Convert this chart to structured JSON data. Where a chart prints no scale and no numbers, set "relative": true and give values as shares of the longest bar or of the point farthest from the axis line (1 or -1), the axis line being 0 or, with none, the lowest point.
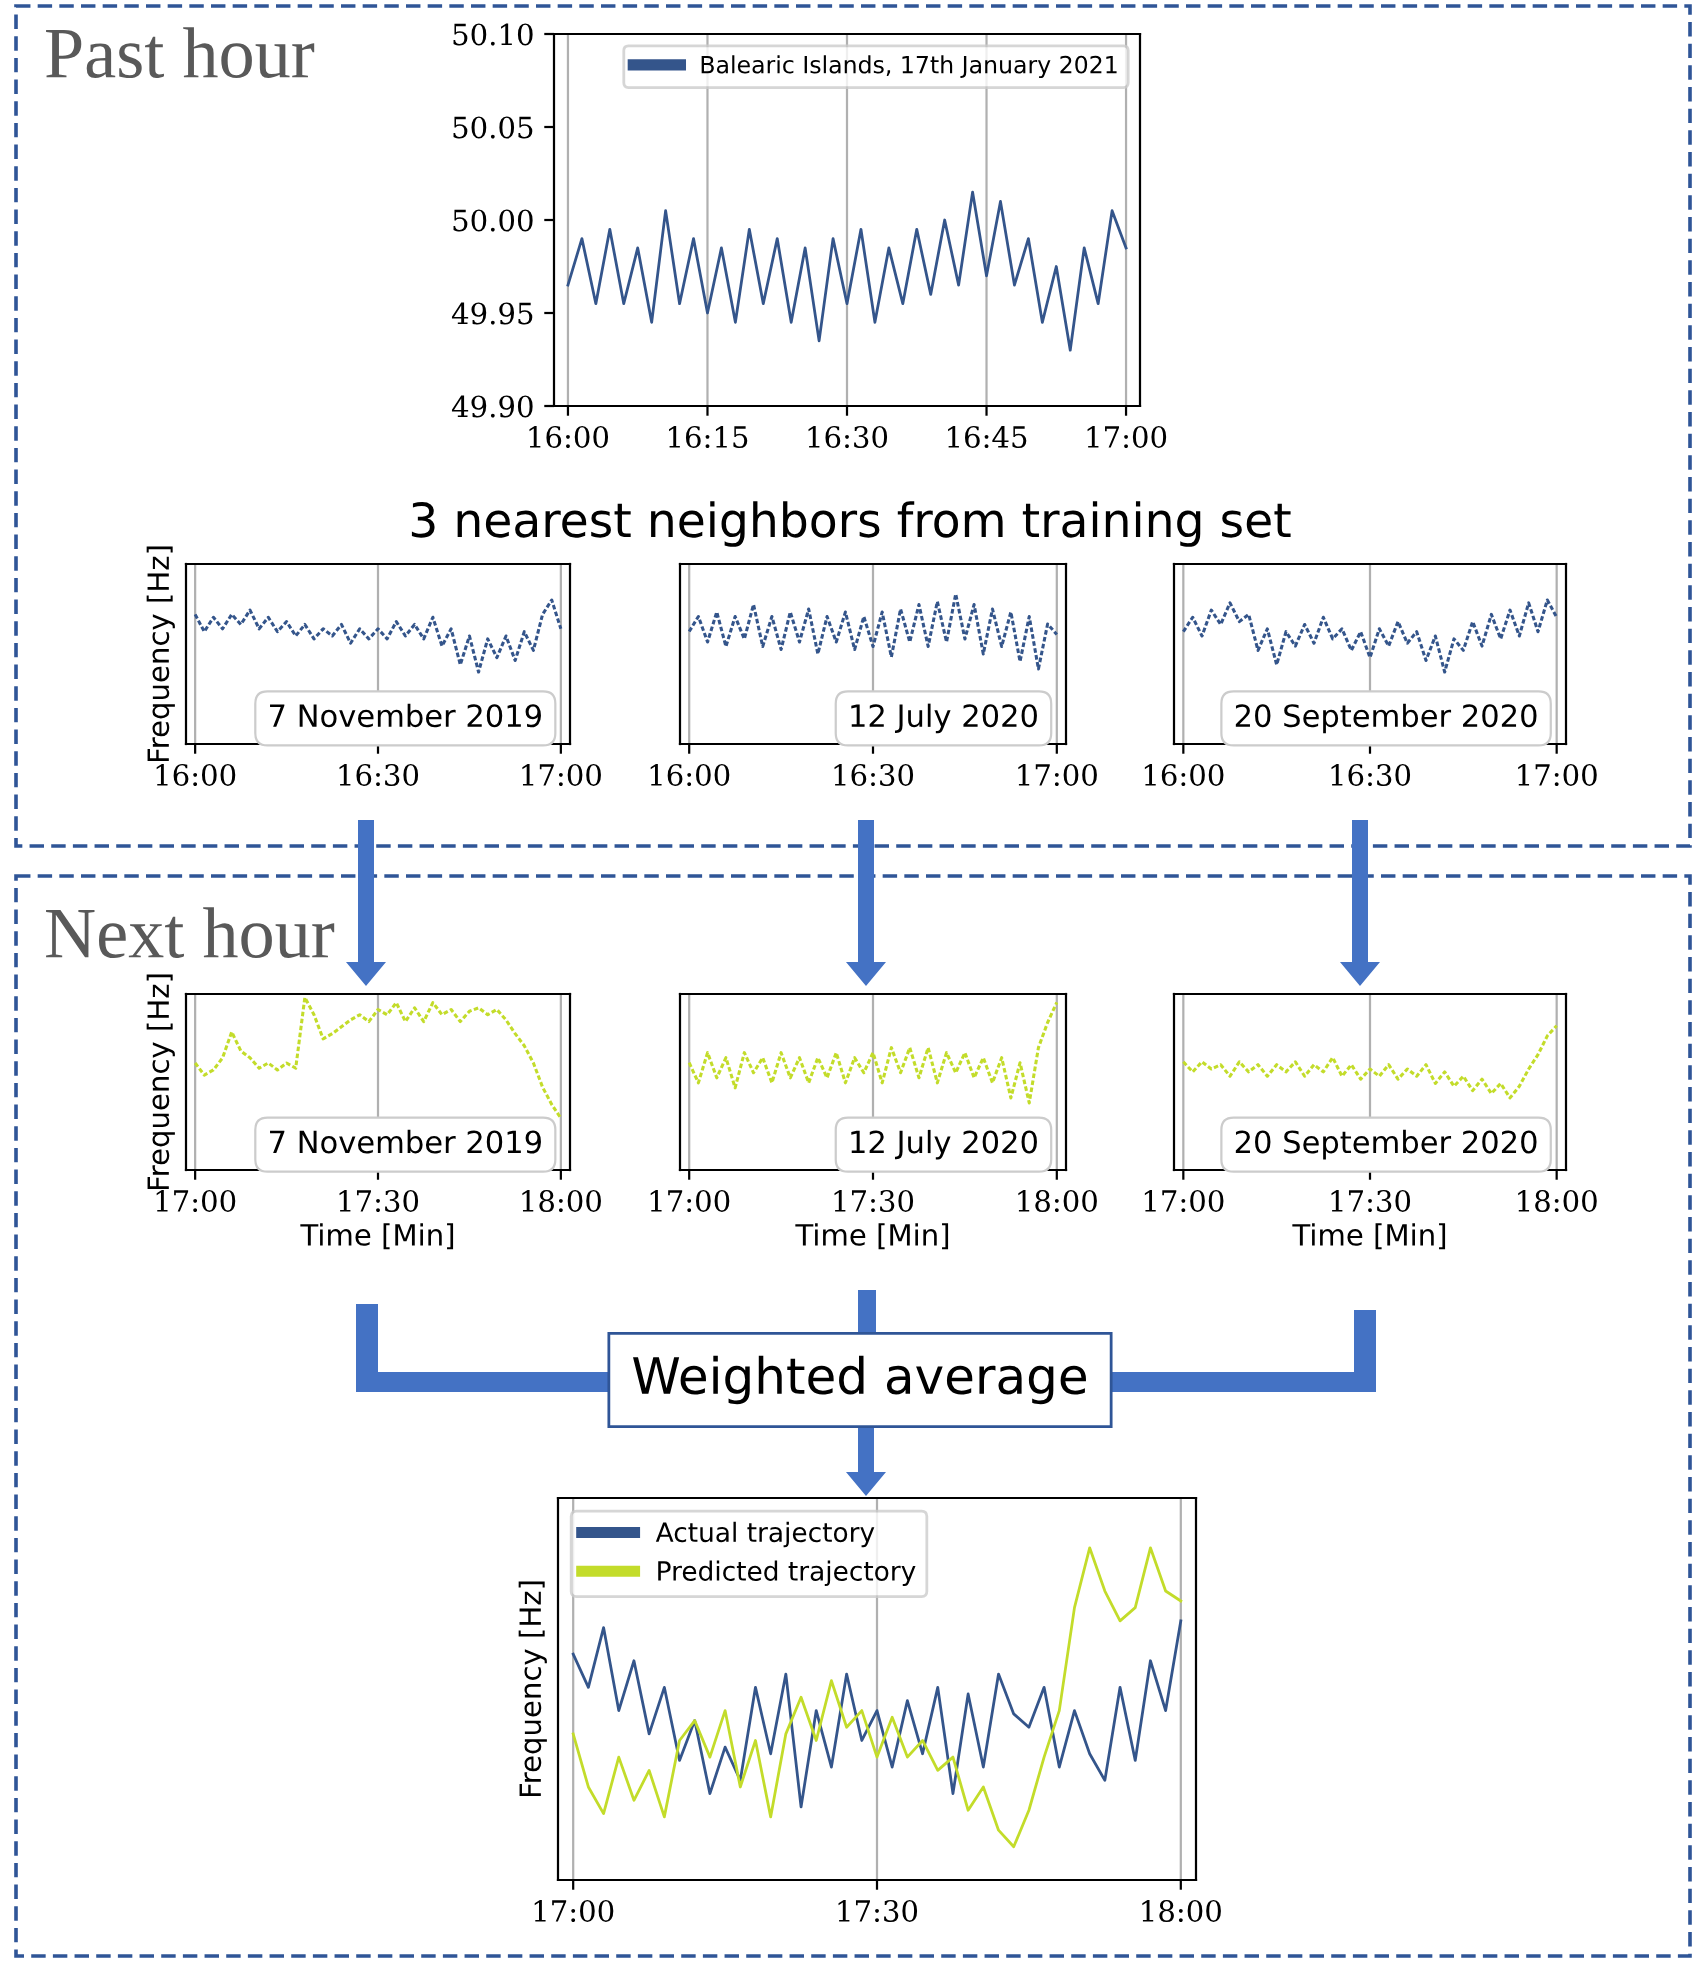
{
  "chart_data": [
    {
      "type": "line",
      "title": "Past hour",
      "x": [
        16.0,
        16.025,
        16.05,
        16.075,
        16.1,
        16.125,
        16.15,
        16.175,
        16.2,
        16.225,
        16.25,
        16.275,
        16.3,
        16.325,
        16.35,
        16.375,
        16.4,
        16.425,
        16.45,
        16.475,
        16.5,
        16.525,
        16.55,
        16.575,
        16.6,
        16.625,
        16.65,
        16.675,
        16.7,
        16.725,
        16.75,
        16.775,
        16.8,
        16.825,
        16.85,
        16.875,
        16.9,
        16.925,
        16.95,
        16.975,
        17.0
      ],
      "series": [
        {
          "name": "Balearic Islands, 17th January 2021",
          "color": "#34558b",
          "values": [
            49.965,
            49.99,
            49.955,
            49.995,
            49.955,
            49.985,
            49.945,
            50.005,
            49.955,
            49.99,
            49.95,
            49.985,
            49.945,
            49.995,
            49.955,
            49.99,
            49.945,
            49.985,
            49.935,
            49.99,
            49.955,
            49.995,
            49.945,
            49.985,
            49.955,
            49.995,
            49.96,
            50.0,
            49.965,
            50.015,
            49.97,
            50.01,
            49.965,
            49.99,
            49.945,
            49.975,
            49.93,
            49.985,
            49.955,
            50.005,
            49.985
          ]
        }
      ],
      "xlim": [
        15.975,
        17.025
      ],
      "xticks": [
        {
          "value": 16.0,
          "label": "16:00"
        },
        {
          "value": 16.25,
          "label": "16:15"
        },
        {
          "value": 16.5,
          "label": "16:30"
        },
        {
          "value": 16.75,
          "label": "16:45"
        },
        {
          "value": 17.0,
          "label": "17:00"
        }
      ],
      "ylim": [
        49.9,
        50.1
      ],
      "yticks": [
        {
          "value": 49.9,
          "label": "49.90"
        },
        {
          "value": 49.95,
          "label": "49.95"
        },
        {
          "value": 50.0,
          "label": "50.00"
        },
        {
          "value": 50.05,
          "label": "50.05"
        },
        {
          "value": 50.1,
          "label": "50.10"
        }
      ],
      "grid": "x",
      "legend": "top right",
      "line_style": "solid"
    },
    {
      "type": "line",
      "title": "3 nearest neighbors from training set",
      "relative": true,
      "ylabel": "Frequency [Hz]",
      "annotations": [
        "7 November 2019"
      ],
      "x": [
        16.0,
        16.025,
        16.05,
        16.075,
        16.1,
        16.125,
        16.15,
        16.175,
        16.2,
        16.225,
        16.25,
        16.275,
        16.3,
        16.325,
        16.35,
        16.375,
        16.4,
        16.425,
        16.45,
        16.475,
        16.5,
        16.525,
        16.55,
        16.575,
        16.6,
        16.625,
        16.65,
        16.675,
        16.7,
        16.725,
        16.75,
        16.775,
        16.8,
        16.825,
        16.85,
        16.875,
        16.9,
        16.925,
        16.95,
        16.975,
        17.0
      ],
      "series": [
        {
          "color": "#34558b",
          "values": [
            0.9,
            0.78,
            0.88,
            0.8,
            0.9,
            0.83,
            0.93,
            0.8,
            0.88,
            0.78,
            0.85,
            0.75,
            0.83,
            0.73,
            0.8,
            0.75,
            0.83,
            0.7,
            0.8,
            0.73,
            0.8,
            0.73,
            0.85,
            0.75,
            0.83,
            0.73,
            0.88,
            0.68,
            0.8,
            0.55,
            0.75,
            0.5,
            0.73,
            0.6,
            0.75,
            0.58,
            0.78,
            0.65,
            0.9,
            1.0,
            0.8
          ]
        }
      ],
      "xlim": [
        15.975,
        17.025
      ],
      "xticks": [
        {
          "value": 16.0,
          "label": "16:00"
        },
        {
          "value": 16.5,
          "label": "16:30"
        },
        {
          "value": 17.0,
          "label": "17:00"
        }
      ],
      "grid": "x",
      "line_style": "dotted"
    },
    {
      "type": "line",
      "relative": true,
      "annotations": [
        "12 July 2020"
      ],
      "x": [
        16.0,
        16.025,
        16.05,
        16.075,
        16.1,
        16.125,
        16.15,
        16.175,
        16.2,
        16.225,
        16.25,
        16.275,
        16.3,
        16.325,
        16.35,
        16.375,
        16.4,
        16.425,
        16.45,
        16.475,
        16.5,
        16.525,
        16.55,
        16.575,
        16.6,
        16.625,
        16.65,
        16.675,
        16.7,
        16.725,
        16.75,
        16.775,
        16.8,
        16.825,
        16.85,
        16.875,
        16.9,
        16.925,
        16.95,
        16.975,
        17.0
      ],
      "series": [
        {
          "color": "#34558b",
          "values": [
            0.75,
            0.85,
            0.68,
            0.88,
            0.65,
            0.85,
            0.7,
            0.93,
            0.65,
            0.85,
            0.63,
            0.88,
            0.68,
            0.9,
            0.6,
            0.85,
            0.68,
            0.88,
            0.63,
            0.85,
            0.65,
            0.88,
            0.58,
            0.9,
            0.68,
            0.93,
            0.65,
            0.95,
            0.68,
            1.0,
            0.7,
            0.93,
            0.6,
            0.9,
            0.65,
            0.88,
            0.55,
            0.85,
            0.5,
            0.8,
            0.73
          ]
        }
      ],
      "xlim": [
        15.975,
        17.025
      ],
      "xticks": [
        {
          "value": 16.0,
          "label": "16:00"
        },
        {
          "value": 16.5,
          "label": "16:30"
        },
        {
          "value": 17.0,
          "label": "17:00"
        }
      ],
      "grid": "x",
      "line_style": "dotted"
    },
    {
      "type": "line",
      "relative": true,
      "annotations": [
        "20 September 2020"
      ],
      "x": [
        16.0,
        16.025,
        16.05,
        16.075,
        16.1,
        16.125,
        16.15,
        16.175,
        16.2,
        16.225,
        16.25,
        16.275,
        16.3,
        16.325,
        16.35,
        16.375,
        16.4,
        16.425,
        16.45,
        16.475,
        16.5,
        16.525,
        16.55,
        16.575,
        16.6,
        16.625,
        16.65,
        16.675,
        16.7,
        16.725,
        16.75,
        16.775,
        16.8,
        16.825,
        16.85,
        16.875,
        16.9,
        16.925,
        16.95,
        16.975,
        17.0
      ],
      "series": [
        {
          "color": "#34558b",
          "values": [
            0.78,
            0.88,
            0.75,
            0.93,
            0.83,
            0.98,
            0.85,
            0.9,
            0.65,
            0.8,
            0.55,
            0.78,
            0.68,
            0.83,
            0.7,
            0.88,
            0.73,
            0.8,
            0.65,
            0.78,
            0.6,
            0.8,
            0.68,
            0.85,
            0.7,
            0.78,
            0.58,
            0.75,
            0.5,
            0.73,
            0.65,
            0.85,
            0.68,
            0.9,
            0.73,
            0.93,
            0.75,
            0.98,
            0.78,
            1.0,
            0.88
          ]
        }
      ],
      "xlim": [
        15.975,
        17.025
      ],
      "xticks": [
        {
          "value": 16.0,
          "label": "16:00"
        },
        {
          "value": 16.5,
          "label": "16:30"
        },
        {
          "value": 17.0,
          "label": "17:00"
        }
      ],
      "grid": "x",
      "line_style": "dotted"
    },
    {
      "type": "line",
      "title": "Next hour",
      "relative": true,
      "ylabel": "Frequency [Hz]",
      "xlabel": "Time [Min]",
      "annotations": [
        "7 November 2019"
      ],
      "x": [
        17.0,
        17.025,
        17.05,
        17.075,
        17.1,
        17.125,
        17.15,
        17.175,
        17.2,
        17.225,
        17.25,
        17.275,
        17.3,
        17.325,
        17.35,
        17.375,
        17.4,
        17.425,
        17.45,
        17.475,
        17.5,
        17.525,
        17.55,
        17.575,
        17.6,
        17.625,
        17.65,
        17.675,
        17.7,
        17.725,
        17.75,
        17.775,
        17.8,
        17.825,
        17.85,
        17.875,
        17.9,
        17.925,
        17.95,
        17.975,
        18.0
      ],
      "series": [
        {
          "color": "#c3dc2a",
          "values": [
            0.62,
            0.55,
            0.58,
            0.65,
            0.8,
            0.69,
            0.65,
            0.59,
            0.62,
            0.58,
            0.62,
            0.59,
            1.0,
            0.9,
            0.76,
            0.79,
            0.83,
            0.87,
            0.9,
            0.86,
            0.93,
            0.9,
            0.97,
            0.86,
            0.94,
            0.86,
            0.97,
            0.9,
            0.93,
            0.86,
            0.92,
            0.94,
            0.9,
            0.93,
            0.87,
            0.79,
            0.72,
            0.62,
            0.48,
            0.38,
            0.3
          ]
        }
      ],
      "xlim": [
        16.975,
        18.025
      ],
      "xticks": [
        {
          "value": 17.0,
          "label": "17:00"
        },
        {
          "value": 17.5,
          "label": "17:30"
        },
        {
          "value": 18.0,
          "label": "18:00"
        }
      ],
      "grid": "x",
      "line_style": "dotted"
    },
    {
      "type": "line",
      "relative": true,
      "xlabel": "Time [Min]",
      "annotations": [
        "12 July 2020"
      ],
      "x": [
        17.0,
        17.025,
        17.05,
        17.075,
        17.1,
        17.125,
        17.15,
        17.175,
        17.2,
        17.225,
        17.25,
        17.275,
        17.3,
        17.325,
        17.35,
        17.375,
        17.4,
        17.425,
        17.45,
        17.475,
        17.5,
        17.525,
        17.55,
        17.575,
        17.6,
        17.625,
        17.65,
        17.675,
        17.7,
        17.725,
        17.75,
        17.775,
        17.8,
        17.825,
        17.85,
        17.875,
        17.9,
        17.925,
        17.95,
        17.975,
        18.0
      ],
      "series": [
        {
          "color": "#c3dc2a",
          "values": [
            0.64,
            0.52,
            0.7,
            0.55,
            0.67,
            0.49,
            0.7,
            0.58,
            0.67,
            0.52,
            0.7,
            0.55,
            0.67,
            0.52,
            0.67,
            0.55,
            0.7,
            0.52,
            0.67,
            0.58,
            0.7,
            0.52,
            0.73,
            0.58,
            0.73,
            0.55,
            0.73,
            0.52,
            0.7,
            0.58,
            0.7,
            0.55,
            0.67,
            0.52,
            0.67,
            0.43,
            0.64,
            0.4,
            0.73,
            0.88,
            1.0
          ]
        }
      ],
      "xlim": [
        16.975,
        18.025
      ],
      "xticks": [
        {
          "value": 17.0,
          "label": "17:00"
        },
        {
          "value": 17.5,
          "label": "17:30"
        },
        {
          "value": 18.0,
          "label": "18:00"
        }
      ],
      "grid": "x",
      "line_style": "dotted"
    },
    {
      "type": "line",
      "relative": true,
      "xlabel": "Time [Min]",
      "annotations": [
        "20 September 2020"
      ],
      "x": [
        17.0,
        17.025,
        17.05,
        17.075,
        17.1,
        17.125,
        17.15,
        17.175,
        17.2,
        17.225,
        17.25,
        17.275,
        17.3,
        17.325,
        17.35,
        17.375,
        17.4,
        17.425,
        17.45,
        17.475,
        17.5,
        17.525,
        17.55,
        17.575,
        17.6,
        17.625,
        17.65,
        17.675,
        17.7,
        17.725,
        17.75,
        17.775,
        17.8,
        17.825,
        17.85,
        17.875,
        17.9,
        17.925,
        17.95,
        17.975,
        18.0
      ],
      "series": [
        {
          "color": "#c3dc2a",
          "values": [
            0.75,
            0.68,
            0.75,
            0.7,
            0.73,
            0.65,
            0.75,
            0.68,
            0.73,
            0.65,
            0.73,
            0.68,
            0.75,
            0.65,
            0.73,
            0.68,
            0.78,
            0.65,
            0.73,
            0.63,
            0.7,
            0.65,
            0.73,
            0.63,
            0.7,
            0.65,
            0.73,
            0.6,
            0.68,
            0.58,
            0.65,
            0.55,
            0.63,
            0.53,
            0.6,
            0.5,
            0.58,
            0.7,
            0.8,
            0.93,
            1.0
          ]
        }
      ],
      "xlim": [
        16.975,
        18.025
      ],
      "xticks": [
        {
          "value": 17.0,
          "label": "17:00"
        },
        {
          "value": 17.5,
          "label": "17:30"
        },
        {
          "value": 18.0,
          "label": "18:00"
        }
      ],
      "grid": "x",
      "line_style": "dotted"
    },
    {
      "type": "line",
      "title": "Weighted average",
      "relative": true,
      "ylabel": "Frequency [Hz]",
      "x": [
        17.0,
        17.025,
        17.05,
        17.075,
        17.1,
        17.125,
        17.15,
        17.175,
        17.2,
        17.225,
        17.25,
        17.275,
        17.3,
        17.325,
        17.35,
        17.375,
        17.4,
        17.425,
        17.45,
        17.475,
        17.5,
        17.525,
        17.55,
        17.575,
        17.6,
        17.625,
        17.65,
        17.675,
        17.7,
        17.725,
        17.75,
        17.775,
        17.8,
        17.825,
        17.85,
        17.875,
        17.9,
        17.925,
        17.95,
        17.975,
        18.0
      ],
      "series": [
        {
          "name": "Actual trajectory",
          "color": "#34558b",
          "values": [
            0.68,
            0.58,
            0.76,
            0.51,
            0.66,
            0.44,
            0.58,
            0.36,
            0.48,
            0.26,
            0.4,
            0.3,
            0.58,
            0.38,
            0.62,
            0.22,
            0.51,
            0.34,
            0.62,
            0.42,
            0.51,
            0.34,
            0.54,
            0.38,
            0.58,
            0.26,
            0.56,
            0.34,
            0.62,
            0.5,
            0.46,
            0.58,
            0.34,
            0.51,
            0.38,
            0.3,
            0.58,
            0.36,
            0.66,
            0.51,
            0.78
          ]
        },
        {
          "name": "Predicted trajectory",
          "color": "#c3dc2a",
          "values": [
            0.44,
            0.28,
            0.2,
            0.37,
            0.24,
            0.33,
            0.19,
            0.42,
            0.48,
            0.37,
            0.51,
            0.28,
            0.42,
            0.19,
            0.44,
            0.55,
            0.42,
            0.6,
            0.46,
            0.51,
            0.37,
            0.49,
            0.37,
            0.42,
            0.33,
            0.37,
            0.21,
            0.28,
            0.15,
            0.1,
            0.21,
            0.37,
            0.51,
            0.82,
            1.0,
            0.87,
            0.78,
            0.82,
            1.0,
            0.87,
            0.84
          ]
        }
      ],
      "xlim": [
        16.975,
        18.025
      ],
      "xticks": [
        {
          "value": 17.0,
          "label": "17:00"
        },
        {
          "value": 17.5,
          "label": "17:30"
        },
        {
          "value": 18.0,
          "label": "18:00"
        }
      ],
      "grid": "x",
      "legend": "top left",
      "line_style": "solid"
    }
  ]
}
